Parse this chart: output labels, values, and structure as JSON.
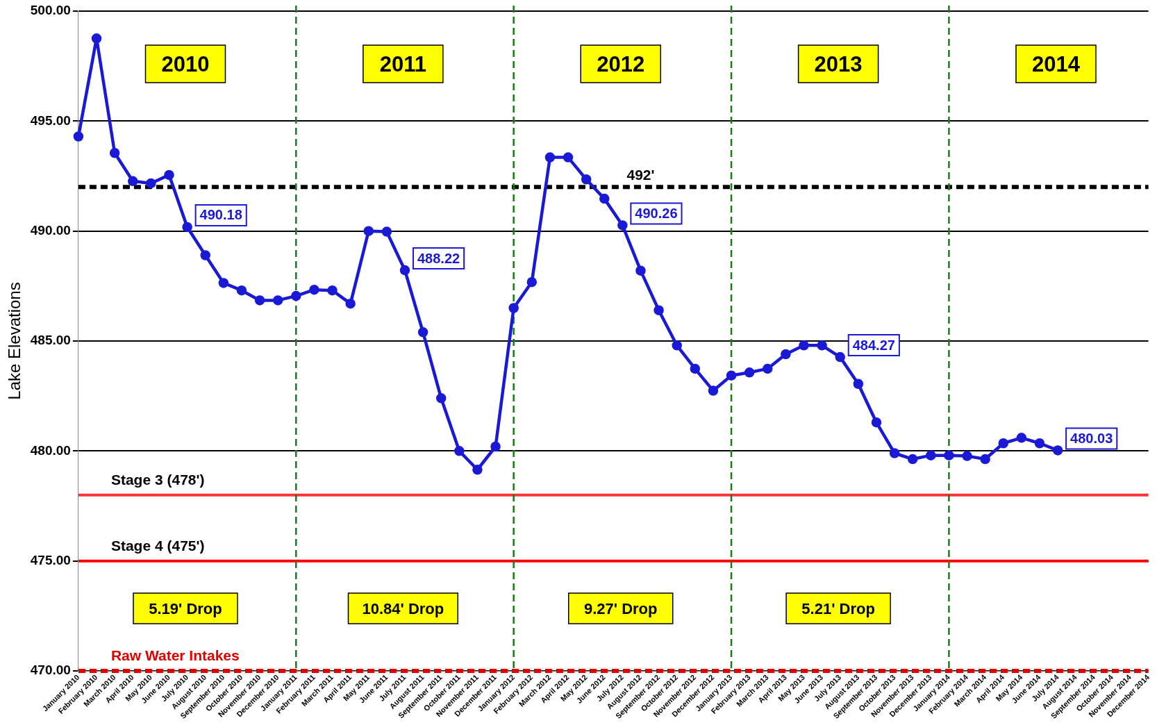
{
  "chart_data": {
    "type": "line",
    "ylabel": "Lake Elevations",
    "categories": [
      "January 2010",
      "February 2010",
      "March 2010",
      "April 2010",
      "May 2010",
      "June 2010",
      "July 2010",
      "August 2010",
      "September 2010",
      "October 2010",
      "November 2010",
      "December 2010",
      "January 2011",
      "February 2011",
      "March 2011",
      "April 2011",
      "May 2011",
      "June 2011",
      "July 2011",
      "August 2011",
      "September 2011",
      "October 2011",
      "November 2011",
      "December 2011",
      "January 2012",
      "February 2012",
      "March 2012",
      "April 2012",
      "May 2012",
      "June 2012",
      "July 2012",
      "August 2012",
      "September 2012",
      "October 2012",
      "November 2012",
      "December 2012",
      "January 2013",
      "February 2013",
      "March 2013",
      "April 2013",
      "May 2013",
      "June 2013",
      "July 2013",
      "August 2013",
      "September 2013",
      "October 2013",
      "November 2013",
      "December 2013",
      "January 2014",
      "February 2014",
      "March 2014",
      "April 2014",
      "May 2014",
      "June 2014",
      "July 2014",
      "August 2014",
      "September 2014",
      "October 2014",
      "November 2014",
      "December 2014"
    ],
    "series": [
      {
        "color": "#1a1ad6",
        "values": [
          494.3,
          498.76,
          493.55,
          492.27,
          492.17,
          492.55,
          490.18,
          488.9,
          487.64,
          487.3,
          486.85,
          486.85,
          487.05,
          487.33,
          487.3,
          486.7,
          490.0,
          489.97,
          488.22,
          485.4,
          482.4,
          480.0,
          479.15,
          480.2,
          486.5,
          487.68,
          493.35,
          493.35,
          492.35,
          491.47,
          490.26,
          488.2,
          486.4,
          484.8,
          483.74,
          482.74,
          483.43,
          483.57,
          483.74,
          484.4,
          484.8,
          484.8,
          484.27,
          483.05,
          481.3,
          479.9,
          479.63,
          479.8,
          479.8,
          479.77,
          479.63,
          480.35,
          480.6,
          480.35,
          480.03,
          null,
          null,
          null,
          null,
          null
        ],
        "value_labels": [
          null,
          null,
          null,
          null,
          null,
          null,
          "490.18",
          null,
          null,
          null,
          null,
          null,
          null,
          null,
          null,
          null,
          null,
          null,
          "488.22",
          null,
          null,
          null,
          null,
          null,
          null,
          null,
          null,
          null,
          null,
          null,
          "490.26",
          null,
          null,
          null,
          null,
          null,
          null,
          null,
          null,
          null,
          null,
          null,
          "484.27",
          null,
          null,
          null,
          null,
          null,
          null,
          null,
          null,
          null,
          null,
          null,
          "480.03",
          null,
          null,
          null,
          null,
          null
        ]
      }
    ],
    "ylim": [
      470,
      500
    ],
    "yticks": [
      {
        "value": 470,
        "label": "470.00"
      },
      {
        "value": 475,
        "label": "475.00"
      },
      {
        "value": 480,
        "label": "480.00"
      },
      {
        "value": 485,
        "label": "485.00"
      },
      {
        "value": 490,
        "label": "490.00"
      },
      {
        "value": 495,
        "label": "495.00"
      },
      {
        "value": 500,
        "label": "500.00"
      }
    ],
    "grid": "y",
    "legend": false,
    "marker": "circle",
    "line_style": "solid",
    "ref_lines": [
      {
        "axis": "y",
        "value": 492,
        "label": "492'",
        "color": "#000000",
        "line_style": "dashed"
      },
      {
        "axis": "y",
        "value": 478,
        "label": "Stage 3 (478')",
        "color": "#ff3333",
        "line_style": "solid"
      },
      {
        "axis": "y",
        "value": 475,
        "label": "Stage 4 (475')",
        "color": "#ff0000",
        "line_style": "solid"
      },
      {
        "axis": "y",
        "value": 470,
        "label": "Raw Water Intakes",
        "color": "#e00000",
        "line_style": "dashed"
      },
      {
        "axis": "x",
        "value": "January 2011",
        "color": "#1a7a1a",
        "line_style": "dashed"
      },
      {
        "axis": "x",
        "value": "January 2012",
        "color": "#1a7a1a",
        "line_style": "dashed"
      },
      {
        "axis": "x",
        "value": "January 2013",
        "color": "#1a7a1a",
        "line_style": "dashed"
      },
      {
        "axis": "x",
        "value": "January 2014",
        "color": "#1a7a1a",
        "line_style": "dashed"
      }
    ],
    "annotations": [
      "2010",
      "2011",
      "2012",
      "2013",
      "2014",
      "5.19' Drop",
      "10.84' Drop",
      "9.27' Drop",
      "5.21' Drop"
    ]
  }
}
